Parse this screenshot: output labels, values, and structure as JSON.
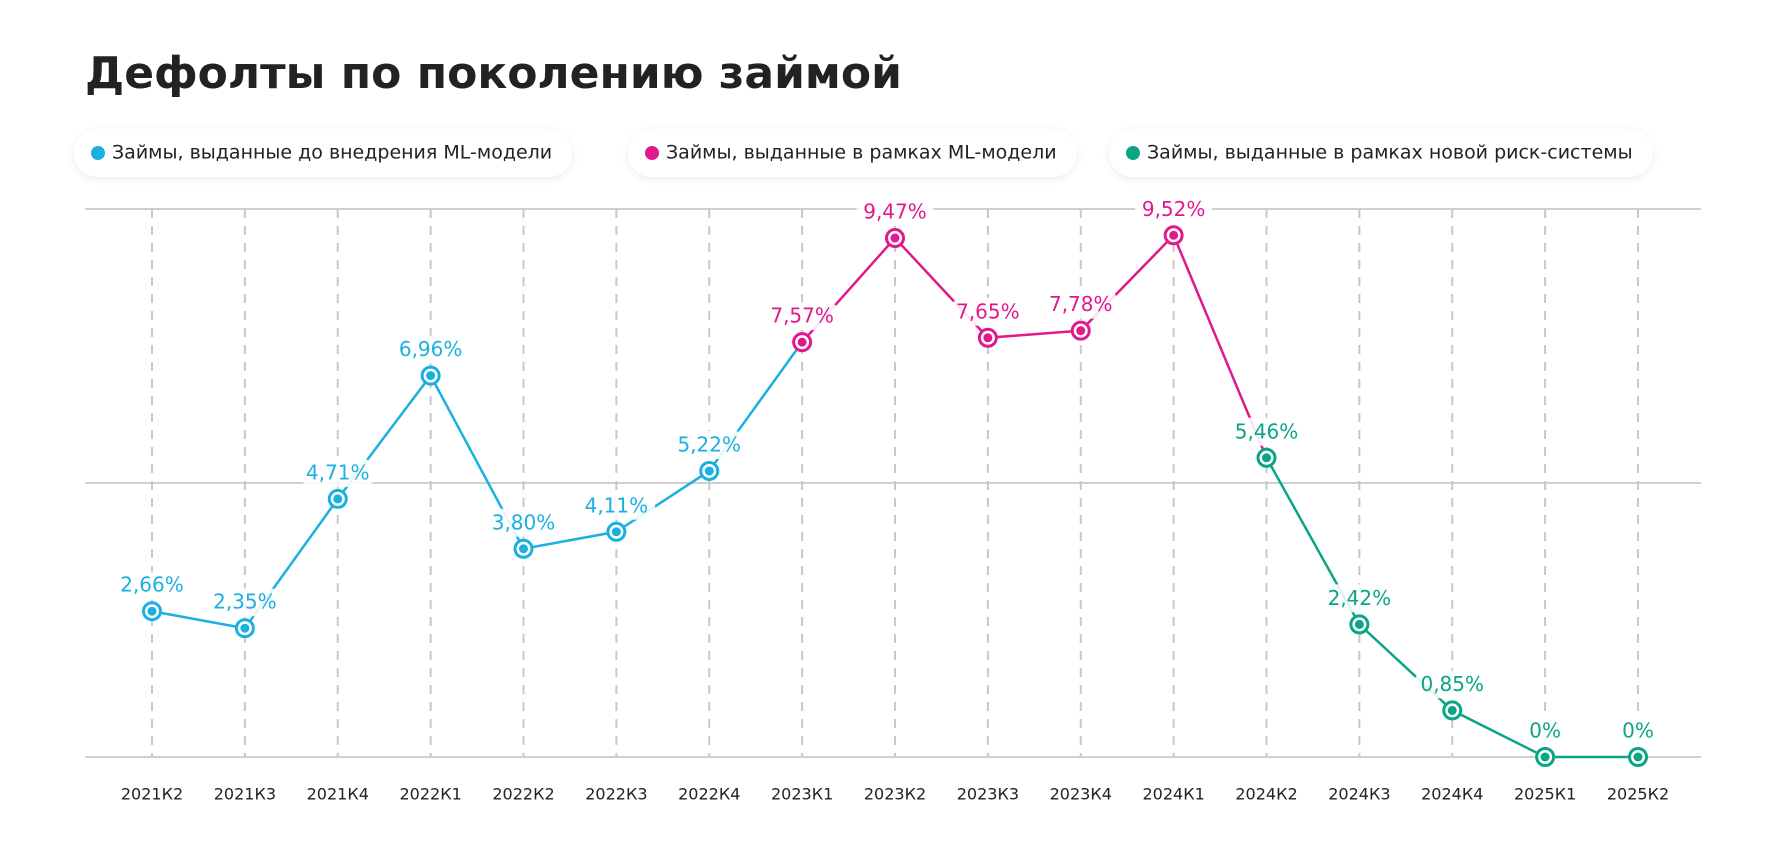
{
  "chart_data": {
    "type": "line",
    "title": "Дефолты по поколению займой",
    "categories": [
      "2021К2",
      "2021К3",
      "2021К4",
      "2022К1",
      "2022К2",
      "2022К3",
      "2022К4",
      "2023К1",
      "2023К2",
      "2023К3",
      "2023К4",
      "2024К1",
      "2024К2",
      "2024К3",
      "2024К4",
      "2025К1",
      "2025К2"
    ],
    "series": [
      {
        "name": "Займы, выданные до внедрения ML-модели",
        "color": "#1ab0e0",
        "values": [
          2.66,
          2.35,
          4.71,
          6.96,
          3.8,
          4.11,
          5.22,
          null,
          null,
          null,
          null,
          null,
          null,
          null,
          null,
          null,
          null
        ],
        "value_labels": [
          "2,66%",
          "2,35%",
          "4,71%",
          "6,96%",
          "3,80%",
          "4,11%",
          "5,22%",
          null,
          null,
          null,
          null,
          null,
          null,
          null,
          null,
          null,
          null
        ]
      },
      {
        "name": "Займы, выданные в рамках ML-модели",
        "color": "#e0198c",
        "values": [
          null,
          null,
          null,
          null,
          null,
          null,
          null,
          7.57,
          9.47,
          7.65,
          7.78,
          9.52,
          null,
          null,
          null,
          null,
          null
        ],
        "value_labels": [
          null,
          null,
          null,
          null,
          null,
          null,
          null,
          "7,57%",
          "9,47%",
          "7,65%",
          "7,78%",
          "9,52%",
          null,
          null,
          null,
          null,
          null
        ]
      },
      {
        "name": "Займы, выданные в рамках новой риск-системы",
        "color": "#0aa585",
        "values": [
          null,
          null,
          null,
          null,
          null,
          null,
          null,
          null,
          null,
          null,
          null,
          null,
          5.46,
          2.42,
          0.85,
          0,
          0
        ],
        "value_labels": [
          null,
          null,
          null,
          null,
          null,
          null,
          null,
          null,
          null,
          null,
          null,
          null,
          "5,46%",
          "2,42%",
          "0,85%",
          "0%",
          "0%"
        ]
      }
    ],
    "ylim": [
      0,
      10
    ],
    "yticks": [
      0,
      5,
      10
    ],
    "grid": true,
    "legend": "top"
  }
}
